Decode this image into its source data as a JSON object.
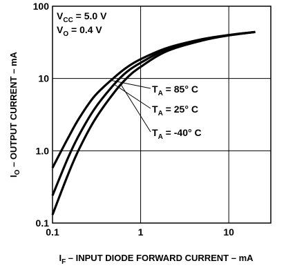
{
  "chart_data": {
    "type": "line",
    "x_scale": "log",
    "y_scale": "log",
    "xlim": [
      0.1,
      30
    ],
    "ylim": [
      0.1,
      100
    ],
    "grid": true,
    "legend": "none",
    "xlabel": {
      "main": "I",
      "sub": "F",
      "rest": " – INPUT DIODE FORWARD CURRENT – mA"
    },
    "ylabel": {
      "main": "I",
      "sub": "O",
      "rest": " – OUTPUT CURRENT – mA"
    },
    "x_ticks": [
      {
        "value": 0.1,
        "label": "0.1"
      },
      {
        "value": 1,
        "label": "1"
      },
      {
        "value": 10,
        "label": "10"
      }
    ],
    "y_ticks": [
      {
        "value": 0.1,
        "label": "0.1"
      },
      {
        "value": 1,
        "label": "1.0"
      },
      {
        "value": 10,
        "label": "10"
      },
      {
        "value": 100,
        "label": "100"
      }
    ],
    "conditions": [
      {
        "main": "V",
        "sub": "CC",
        "rest": " = 5.0 V"
      },
      {
        "main": "V",
        "sub": "O",
        "rest": " = 0.4 V"
      }
    ],
    "series": [
      {
        "name": {
          "main": "T",
          "sub": "A",
          "rest": " = 85° C"
        },
        "x": [
          0.1,
          0.15,
          0.2,
          0.3,
          0.5,
          0.7,
          1,
          2,
          5,
          10,
          20
        ],
        "y": [
          0.58,
          1.5,
          2.8,
          5.7,
          10.3,
          14.3,
          18.5,
          26.5,
          35,
          40,
          44
        ]
      },
      {
        "name": {
          "main": "T",
          "sub": "A",
          "rest": " = 25° C"
        },
        "x": [
          0.1,
          0.15,
          0.2,
          0.3,
          0.5,
          0.7,
          1,
          2,
          5,
          10,
          20
        ],
        "y": [
          0.24,
          0.8,
          1.65,
          3.8,
          8.3,
          12.4,
          16.5,
          25.5,
          34.5,
          39.5,
          44
        ]
      },
      {
        "name": {
          "main": "T",
          "sub": "A",
          "rest": " = -40° C"
        },
        "x": [
          0.1,
          0.15,
          0.2,
          0.3,
          0.5,
          0.7,
          1,
          2,
          5,
          10,
          20
        ],
        "y": [
          0.13,
          0.47,
          1.05,
          2.65,
          6.4,
          10.2,
          14.5,
          24,
          33.5,
          39.5,
          44
        ]
      }
    ],
    "colors": {
      "line": "#000000",
      "grid": "#000000",
      "background": "#ffffff"
    }
  }
}
